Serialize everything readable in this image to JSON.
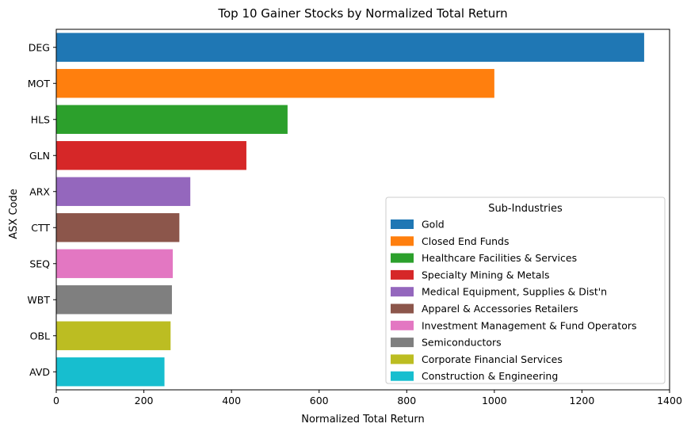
{
  "chart_data": {
    "type": "bar",
    "orientation": "horizontal",
    "title": "Top 10 Gainer Stocks by Normalized Total Return",
    "xlabel": "Normalized Total Return",
    "ylabel": "ASX Code",
    "xlim": [
      0,
      1400
    ],
    "xticks": [
      0,
      200,
      400,
      600,
      800,
      1000,
      1200,
      1400
    ],
    "grid": false,
    "legend": {
      "title": "Sub-Industries",
      "placement": "lower-right"
    },
    "categories": [
      "DEG",
      "MOT",
      "HLS",
      "GLN",
      "ARX",
      "CTT",
      "SEQ",
      "WBT",
      "OBL",
      "AVD"
    ],
    "values": [
      1342,
      1000,
      528,
      434,
      306,
      281,
      266,
      264,
      261,
      247
    ],
    "sub_industries": [
      "Gold",
      "Closed End Funds",
      "Healthcare Facilities & Services",
      "Specialty Mining & Metals",
      "Medical Equipment, Supplies & Dist'n",
      "Apparel & Accessories Retailers",
      "Investment Management & Fund Operators",
      "Semiconductors",
      "Corporate Financial Services",
      "Construction & Engineering"
    ],
    "colors": [
      "#1f77b4",
      "#ff7f0e",
      "#2ca02c",
      "#d62728",
      "#9467bd",
      "#8c564b",
      "#e377c2",
      "#7f7f7f",
      "#bcbd22",
      "#17becf"
    ]
  }
}
